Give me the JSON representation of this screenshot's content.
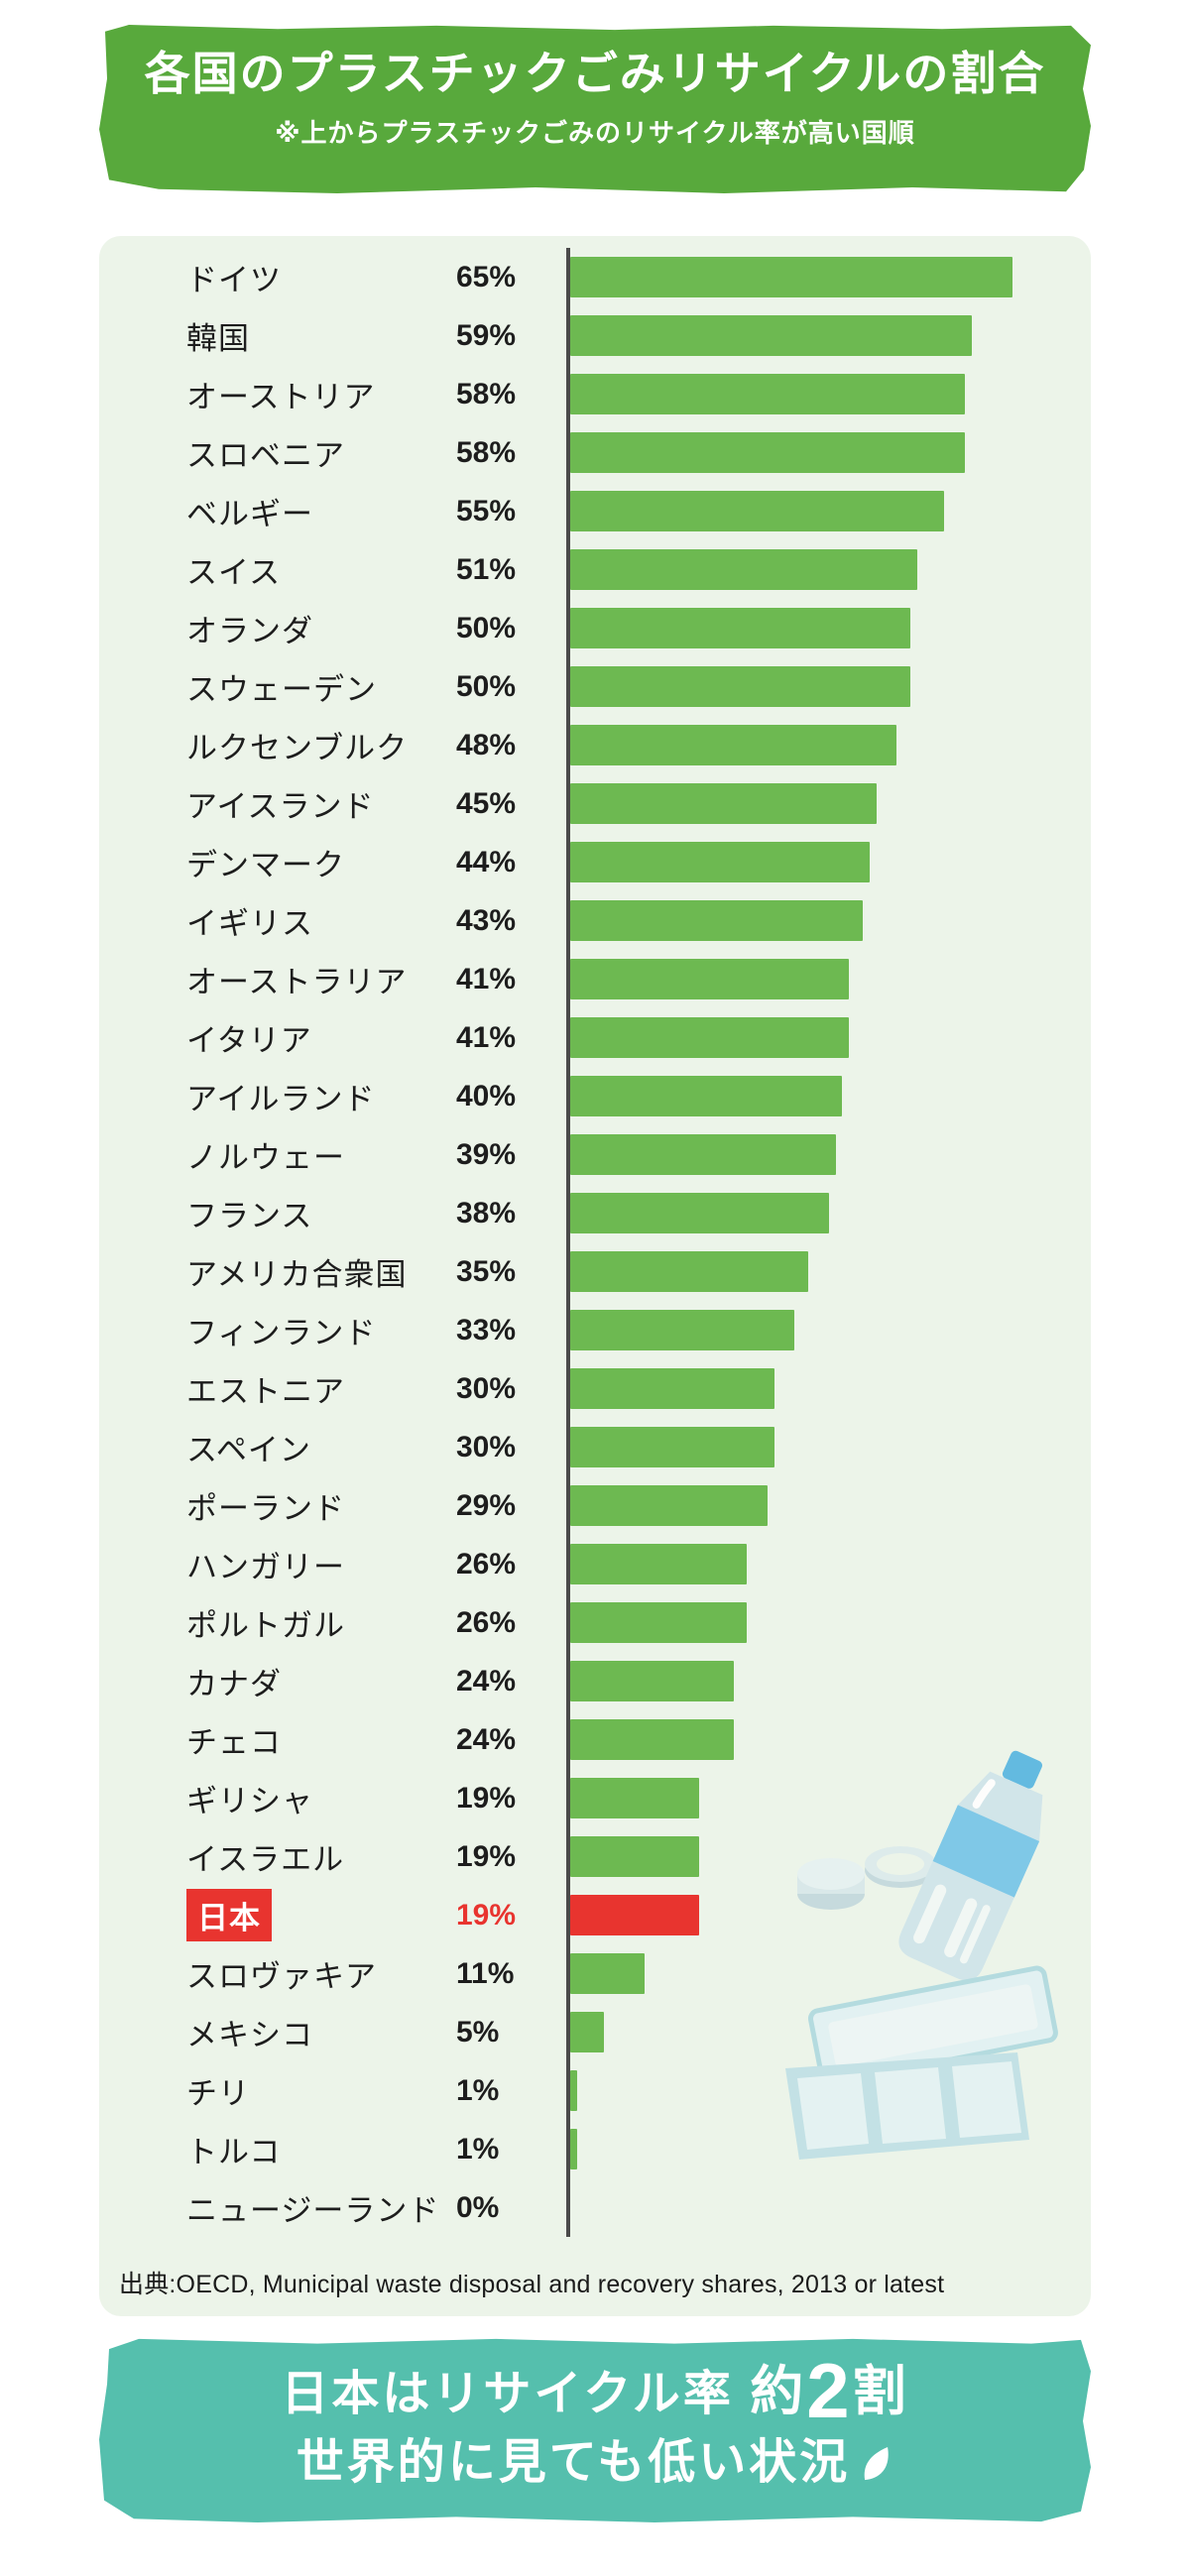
{
  "header": {
    "title": "各国のプラスチックごみリサイクルの割合",
    "subtitle": "※上からプラスチックごみのリサイクル率が高い国順",
    "bg_color": "#58a93c",
    "text_color": "#ffffff"
  },
  "chart_data": {
    "type": "bar",
    "orientation": "horizontal",
    "value_unit": "%",
    "value_axis_max": 65,
    "categories": [
      "ドイツ",
      "韓国",
      "オーストリア",
      "スロベニア",
      "ベルギー",
      "スイス",
      "オランダ",
      "スウェーデン",
      "ルクセンブルク",
      "アイスランド",
      "デンマーク",
      "イギリス",
      "オーストラリア",
      "イタリア",
      "アイルランド",
      "ノルウェー",
      "フランス",
      "アメリカ合衆国",
      "フィンランド",
      "エストニア",
      "スペイン",
      "ポーランド",
      "ハンガリー",
      "ポルトガル",
      "カナダ",
      "チェコ",
      "ギリシャ",
      "イスラエル",
      "日本",
      "スロヴァキア",
      "メキシコ",
      "チリ",
      "トルコ",
      "ニュージーランド"
    ],
    "values": [
      65,
      59,
      58,
      58,
      55,
      51,
      50,
      50,
      48,
      45,
      44,
      43,
      41,
      41,
      40,
      39,
      38,
      35,
      33,
      30,
      30,
      29,
      26,
      26,
      24,
      24,
      19,
      19,
      19,
      11,
      5,
      1,
      1,
      0
    ],
    "bar_color": "#6db951",
    "highlight_index": 28,
    "highlight_label": "日本",
    "highlight_color": "#e8342f",
    "axis_color": "#4a4a4a",
    "panel_bg_color": "#ecf4e9",
    "legend": "none",
    "grid": "off",
    "source": "出典:OECD, Municipal waste disposal and recovery shares, 2013 or latest"
  },
  "illustration_items": [
    "pet-bottle",
    "bottle-caps",
    "food-tray"
  ],
  "footer": {
    "bg_color": "#55bfad",
    "text_color": "#ffffff",
    "line1_segments": [
      {
        "text": "日本はリサイクル率 ",
        "size": "normal"
      },
      {
        "text": "約",
        "size": "medium"
      },
      {
        "text": "2",
        "size": "big"
      },
      {
        "text": "割",
        "size": "medium"
      }
    ],
    "line2": "世界的に見ても低い状況"
  }
}
